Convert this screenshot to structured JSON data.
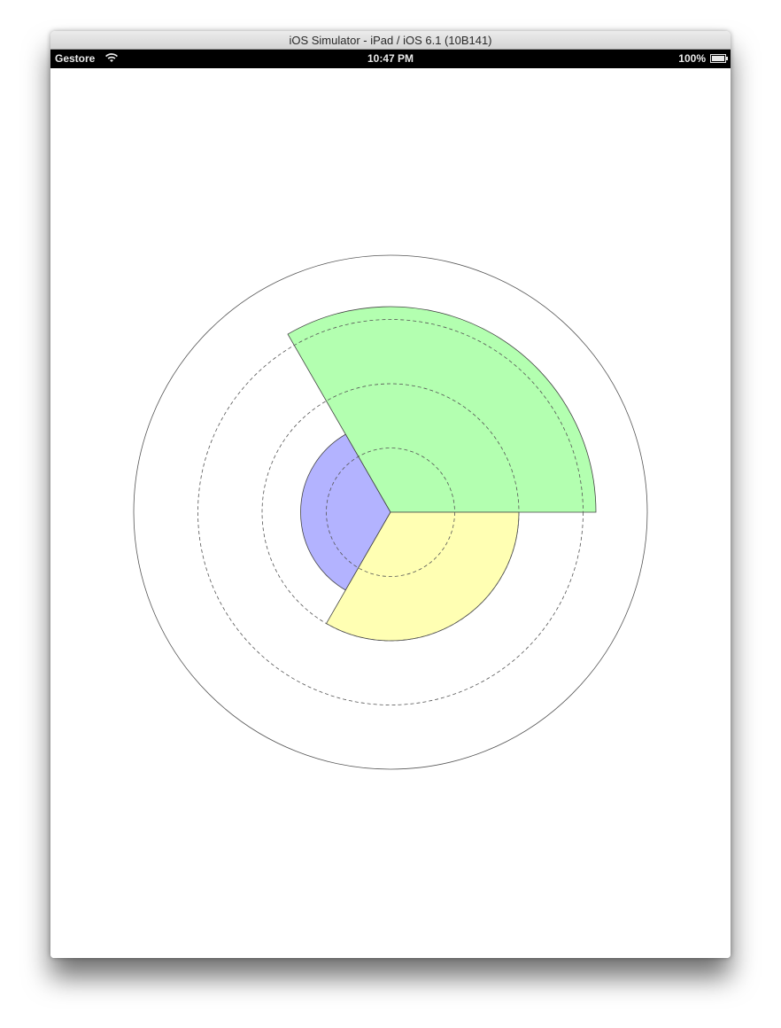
{
  "window": {
    "title": "iOS Simulator - iPad / iOS 6.1 (10B141)"
  },
  "status_bar": {
    "carrier": "Gestore",
    "time": "10:47 PM",
    "battery": "100%",
    "battery_level": 1.0,
    "wifi_icon": "wifi-icon",
    "battery_icon": "battery-icon"
  },
  "chart_data": {
    "type": "polar-area",
    "outer_range": 4,
    "gridlines": [
      1,
      2,
      3
    ],
    "segments": [
      {
        "value": 3.2,
        "start_deg": 0,
        "end_deg": 120,
        "color": "#b3ffb0"
      },
      {
        "value": 1.4,
        "start_deg": 120,
        "end_deg": 240,
        "color": "#b3b3ff"
      },
      {
        "value": 2.0,
        "start_deg": 240,
        "end_deg": 360,
        "color": "#ffffb3"
      }
    ]
  }
}
